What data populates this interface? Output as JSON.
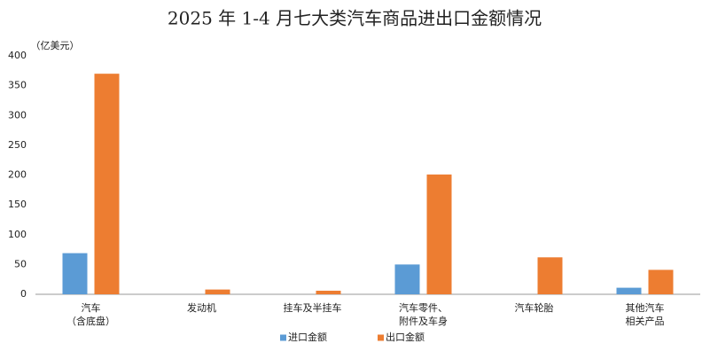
{
  "chart_data": {
    "type": "bar",
    "title": "2025 年 1-4 月七大类汽车商品进出口金额情况",
    "y_label": "（亿美元）",
    "categories": [
      "汽车\n（含底盘）",
      "发动机",
      "挂车及半挂车",
      "汽车零件、\n附件及车身",
      "汽车轮胎",
      "其他汽车\n相关产品"
    ],
    "series": [
      {
        "name": "进口金额",
        "color": "#5b9bd5",
        "values": [
          69,
          0,
          0,
          50,
          0,
          11
        ]
      },
      {
        "name": "出口金额",
        "color": "#ed7d31",
        "values": [
          370,
          8,
          6,
          201,
          62,
          41
        ]
      }
    ],
    "ylim": [
      0,
      400
    ],
    "yticks": [
      0,
      50,
      100,
      150,
      200,
      250,
      300,
      350,
      400
    ],
    "grid": false,
    "legend": "bottom"
  }
}
